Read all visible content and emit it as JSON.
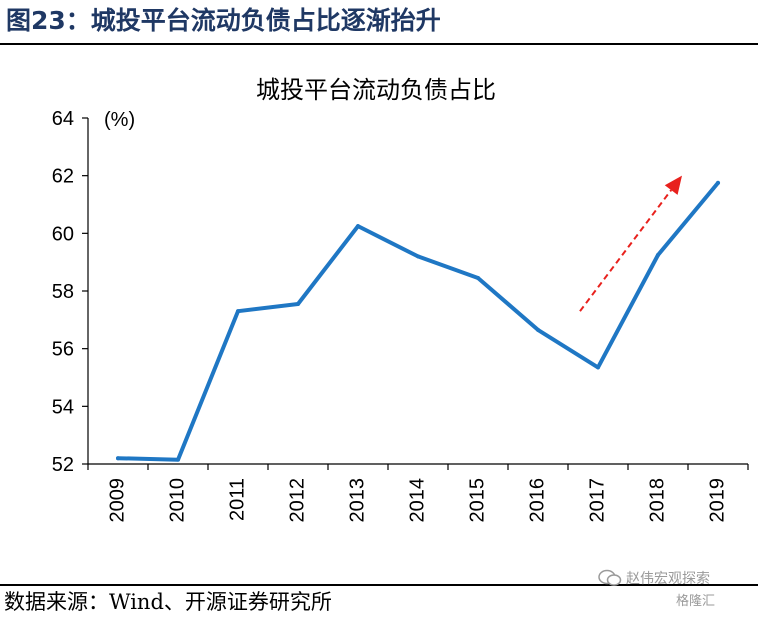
{
  "figure": {
    "title": "图23：城投平台流动负债占比逐渐抬升",
    "source": "数据来源：Wind、开源证券研究所"
  },
  "watermark": {
    "account": "赵伟宏观探索",
    "brand": "格隆汇"
  },
  "chart_data": {
    "type": "line",
    "title": "城投平台流动负债占比",
    "unit_label": "(%)",
    "xlabel": "",
    "ylabel": "",
    "categories": [
      "2009",
      "2010",
      "2011",
      "2012",
      "2013",
      "2014",
      "2015",
      "2016",
      "2017",
      "2018",
      "2019"
    ],
    "series": [
      {
        "values": [
          52.2,
          52.15,
          57.3,
          57.55,
          60.25,
          59.2,
          58.45,
          56.65,
          55.35,
          59.25,
          61.75
        ],
        "color": "#1f77c4"
      }
    ],
    "ylim": [
      52,
      64
    ],
    "yticks": [
      52,
      54,
      56,
      58,
      60,
      62,
      64
    ],
    "grid": false,
    "annotation": {
      "type": "dashed-arrow",
      "color": "#e8211d",
      "from": [
        "2016.7",
        57.3
      ],
      "to": [
        "2018.4",
        62.0
      ]
    }
  }
}
